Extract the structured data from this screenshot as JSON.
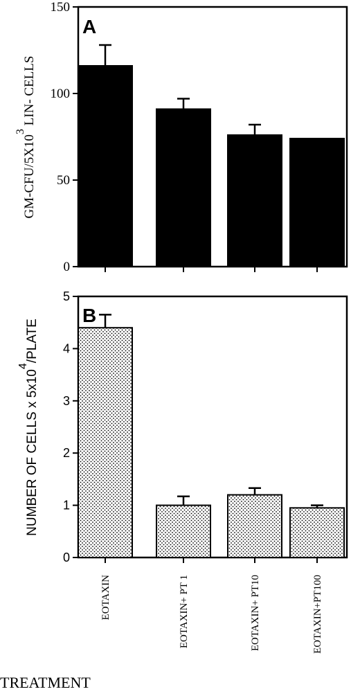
{
  "chart_data": [
    {
      "type": "bar",
      "panel": "A",
      "categories": [
        "EOTAXIN",
        "EOTAXIN+ PT 1",
        "EOTAXIN+ PT10",
        "EOTAXIN+PT100"
      ],
      "values": [
        116,
        91,
        76,
        74
      ],
      "errors": [
        12,
        6,
        6,
        0
      ],
      "ylabel_parts": {
        "base": "GM-CFU/5X10",
        "sup": "3",
        "tail": " LIN-  CELLS"
      },
      "ylim": [
        0,
        150
      ],
      "yticks": [
        0,
        50,
        100,
        150
      ],
      "bar_color": "#000000",
      "legend": "none"
    },
    {
      "type": "bar",
      "panel": "B",
      "categories": [
        "EOTAXIN",
        "EOTAXIN+ PT 1",
        "EOTAXIN+ PT10",
        "EOTAXIN+PT100"
      ],
      "values": [
        4.4,
        1.0,
        1.2,
        0.95
      ],
      "errors": [
        0.25,
        0.17,
        0.13,
        0.05
      ],
      "ylabel_parts": {
        "base": "NUMBER OF CELLS x 5x10",
        "sup": "4",
        "tail": "/PLATE"
      },
      "ylim": [
        0,
        5
      ],
      "yticks": [
        0,
        1,
        2,
        3,
        4,
        5
      ],
      "bar_fill": "dotted",
      "legend": "none"
    }
  ],
  "xlabel": "TREATMENT"
}
